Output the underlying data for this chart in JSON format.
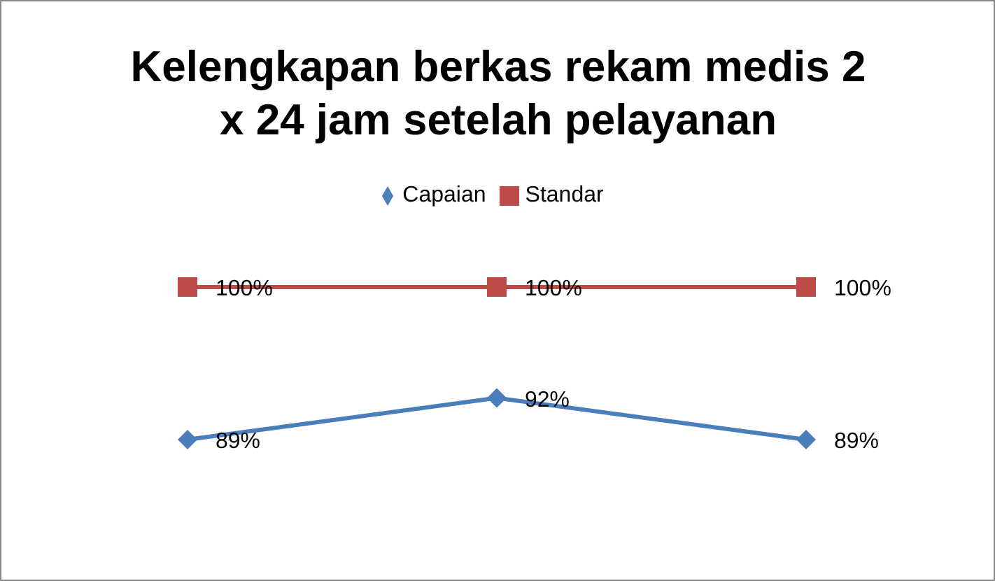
{
  "chart_data": {
    "type": "line",
    "title": "Kelengkapan berkas rekam medis 2 x 24 jam setelah pelayanan",
    "categories": [
      null,
      null,
      null
    ],
    "tick_labels": false,
    "grid": false,
    "legend": "top",
    "series": [
      {
        "name": "Capaian",
        "color": "#4a7ebb",
        "values": [
          89,
          92,
          89
        ],
        "value_labels": [
          "89%",
          "92%",
          "89%"
        ],
        "marker": "diamond"
      },
      {
        "name": "Standar",
        "color": "#be4b48",
        "values": [
          100,
          100,
          100
        ],
        "value_labels": [
          "100%",
          "100%",
          "100%"
        ],
        "marker": "square"
      }
    ]
  }
}
